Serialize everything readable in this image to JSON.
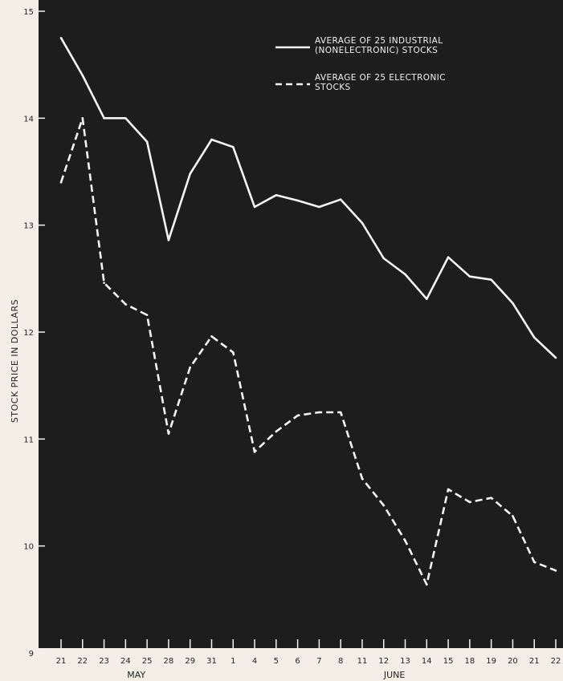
{
  "chart_data": {
    "type": "line",
    "ylabel": "STOCK PRICE IN DOLLARS",
    "ylim": [
      9,
      15
    ],
    "yticks": [
      "9",
      "10",
      "11",
      "12",
      "13",
      "14",
      "15"
    ],
    "categories": [
      "21",
      "22",
      "23",
      "24",
      "25",
      "28",
      "29",
      "31",
      "1",
      "4",
      "5",
      "6",
      "7",
      "8",
      "11",
      "12",
      "13",
      "14",
      "15",
      "18",
      "19",
      "20",
      "21",
      "22"
    ],
    "months": [
      {
        "label": "MAY",
        "span": [
          0,
          7
        ]
      },
      {
        "label": "JUNE",
        "span": [
          8,
          23
        ]
      }
    ],
    "grid": false,
    "legend_position": "top-right",
    "series": [
      {
        "name": "AVERAGE OF 25 INDUSTRIAL (NONELECTRONIC) STOCKS",
        "legend_lines": [
          "AVERAGE OF 25 INDUSTRIAL",
          "(NONELECTRONIC) STOCKS"
        ],
        "style": "solid",
        "color": "#f4f4f4",
        "values": [
          14.75,
          14.4,
          14.0,
          14.0,
          13.78,
          12.86,
          13.48,
          13.8,
          13.73,
          13.17,
          13.28,
          13.23,
          13.17,
          13.24,
          13.02,
          12.69,
          12.54,
          12.31,
          12.7,
          12.52,
          12.49,
          12.27,
          11.95,
          11.76
        ]
      },
      {
        "name": "AVERAGE OF 25 ELECTRONIC STOCKS",
        "legend_lines": [
          "AVERAGE OF 25 ELECTRONIC",
          "STOCKS"
        ],
        "style": "dashed",
        "color": "#f4f4f4",
        "values": [
          13.4,
          14.0,
          12.46,
          12.26,
          12.16,
          11.05,
          11.67,
          11.96,
          11.81,
          10.88,
          11.07,
          11.22,
          11.25,
          11.25,
          10.63,
          10.38,
          10.05,
          9.64,
          10.53,
          10.41,
          10.45,
          10.28,
          9.85,
          9.77
        ]
      }
    ],
    "colors": {
      "panel": "#1d1d1d",
      "paper": "#f3efe6",
      "ink": "#222222"
    }
  }
}
